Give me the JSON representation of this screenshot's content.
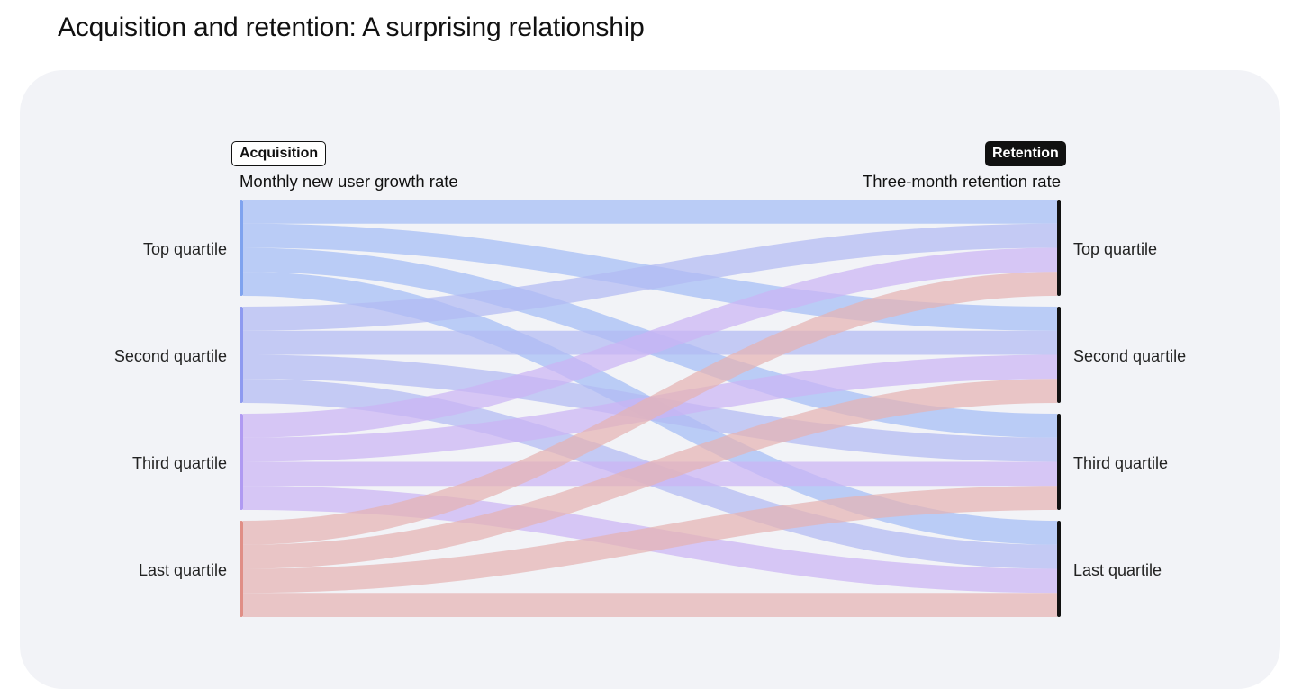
{
  "title": "Acquisition and retention: A surprising relationship",
  "diagram": {
    "type": "sankey",
    "left_tag": "Acquisition",
    "left_axis_title": "Monthly new user growth rate",
    "right_tag": "Retention",
    "right_axis_title": "Three-month retention rate",
    "left_nodes": [
      "Top quartile",
      "Second quartile",
      "Third quartile",
      "Last quartile"
    ],
    "right_nodes": [
      "Top quartile",
      "Second quartile",
      "Third quartile",
      "Last quartile"
    ],
    "source_colors": [
      "#a3bdf5",
      "#b2baf2",
      "#cbb4f4",
      "#e5b3b3"
    ],
    "node_colors": [
      "#7fa3ef",
      "#8e9af0",
      "#b09af2",
      "#e08e86"
    ],
    "right_bar_color": "#111111",
    "flows": [
      {
        "from": 0,
        "to": 0,
        "value": 1
      },
      {
        "from": 0,
        "to": 1,
        "value": 1
      },
      {
        "from": 0,
        "to": 2,
        "value": 1
      },
      {
        "from": 0,
        "to": 3,
        "value": 1
      },
      {
        "from": 1,
        "to": 0,
        "value": 1
      },
      {
        "from": 1,
        "to": 1,
        "value": 1
      },
      {
        "from": 1,
        "to": 2,
        "value": 1
      },
      {
        "from": 1,
        "to": 3,
        "value": 1
      },
      {
        "from": 2,
        "to": 0,
        "value": 1
      },
      {
        "from": 2,
        "to": 1,
        "value": 1
      },
      {
        "from": 2,
        "to": 2,
        "value": 1
      },
      {
        "from": 2,
        "to": 3,
        "value": 1
      },
      {
        "from": 3,
        "to": 0,
        "value": 1
      },
      {
        "from": 3,
        "to": 1,
        "value": 1
      },
      {
        "from": 3,
        "to": 2,
        "value": 1
      },
      {
        "from": 3,
        "to": 3,
        "value": 1
      }
    ]
  }
}
